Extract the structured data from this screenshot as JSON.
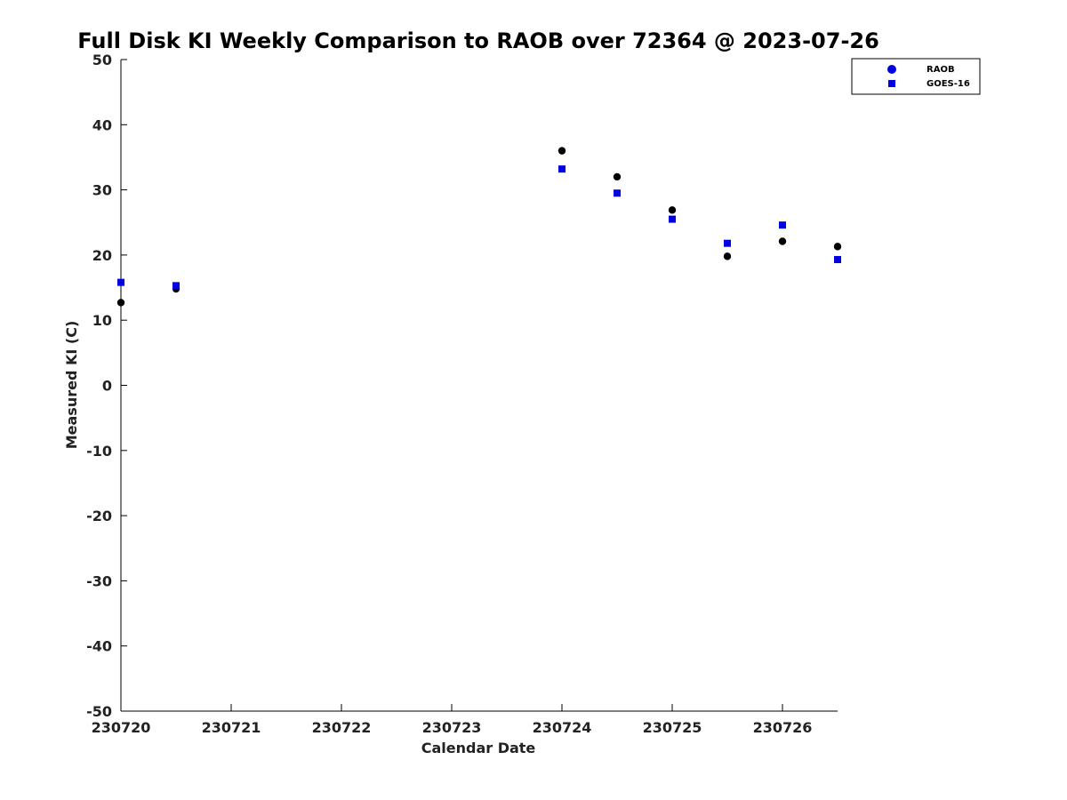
{
  "chart_data": {
    "type": "scatter",
    "title": "Full Disk KI Weekly Comparison to RAOB over 72364 @ 2023-07-26",
    "xlabel": "Calendar Date",
    "ylabel": "Measured KI (C)",
    "xlim": [
      0,
      6.5
    ],
    "ylim": [
      -50,
      50
    ],
    "x_ticks": [
      {
        "value": 0,
        "label": "230720"
      },
      {
        "value": 1,
        "label": "230721"
      },
      {
        "value": 2,
        "label": "230722"
      },
      {
        "value": 3,
        "label": "230723"
      },
      {
        "value": 4,
        "label": "230724"
      },
      {
        "value": 5,
        "label": "230725"
      },
      {
        "value": 6,
        "label": "230726"
      }
    ],
    "y_ticks": [
      50,
      40,
      30,
      20,
      10,
      0,
      -10,
      -20,
      -30,
      -40,
      -50
    ],
    "legend_position": "top-right",
    "series": [
      {
        "name": "RAOB",
        "marker": "circle",
        "color": "#000000",
        "legend_color": "#0000e0",
        "points": [
          {
            "x": 0.0,
            "y": 12.7
          },
          {
            "x": 0.5,
            "y": 14.8
          },
          {
            "x": 4.0,
            "y": 36.0
          },
          {
            "x": 4.5,
            "y": 32.0
          },
          {
            "x": 5.0,
            "y": 26.9
          },
          {
            "x": 5.5,
            "y": 19.8
          },
          {
            "x": 6.0,
            "y": 22.1
          },
          {
            "x": 6.5,
            "y": 21.3
          }
        ]
      },
      {
        "name": "GOES-16",
        "marker": "square",
        "color": "#0000e0",
        "legend_color": "#0000e0",
        "points": [
          {
            "x": 0.0,
            "y": 15.8
          },
          {
            "x": 0.5,
            "y": 15.3
          },
          {
            "x": 4.0,
            "y": 33.2
          },
          {
            "x": 4.5,
            "y": 29.5
          },
          {
            "x": 5.0,
            "y": 25.5
          },
          {
            "x": 5.5,
            "y": 21.8
          },
          {
            "x": 6.0,
            "y": 24.6
          },
          {
            "x": 6.5,
            "y": 19.3
          }
        ]
      }
    ]
  }
}
